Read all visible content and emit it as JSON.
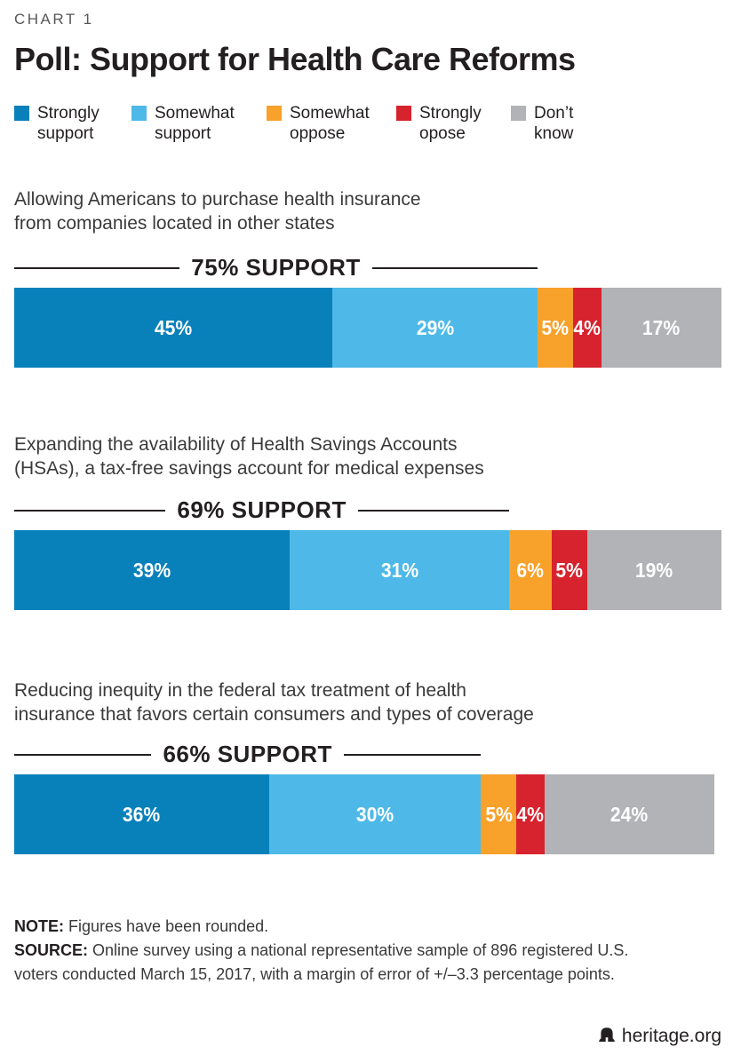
{
  "chart_label": "CHART 1",
  "title": "Poll: Support for Health Care Reforms",
  "legend": [
    {
      "label": "Strongly\nsupport",
      "color": "#0881bb"
    },
    {
      "label": "Somewhat\nsupport",
      "color": "#4eb9e8"
    },
    {
      "label": "Somewhat\noppose",
      "color": "#f8a12b"
    },
    {
      "label": "Strongly\nopose",
      "color": "#d7232e"
    },
    {
      "label": "Don’t\nknow",
      "color": "#b1b3b6"
    }
  ],
  "chart_data": {
    "type": "bar",
    "orientation": "horizontal-stacked",
    "unit": "%",
    "axis_range": [
      0,
      100
    ],
    "grid": false,
    "legend_position": "top",
    "series_labels": [
      "Strongly support",
      "Somewhat support",
      "Somewhat oppose",
      "Strongly opose",
      "Don't know"
    ],
    "series_keys": [
      "strongly-support",
      "somewhat-support",
      "somewhat-oppose",
      "strongly-oppose",
      "dont-know"
    ],
    "sections": [
      {
        "question": "Allowing Americans to purchase health insurance\nfrom companies located in other states",
        "support_label": "75% SUPPORT",
        "support_total": 75,
        "values": [
          45,
          29,
          5,
          4,
          17
        ],
        "value_labels": [
          "45%",
          "29%",
          "5%",
          "4%",
          "17%"
        ]
      },
      {
        "question": "Expanding the availability of Health Savings Accounts\n(HSAs), a tax-free savings account for medical expenses",
        "support_label": "69% SUPPORT",
        "support_total": 69,
        "values": [
          39,
          31,
          6,
          5,
          19
        ],
        "value_labels": [
          "39%",
          "31%",
          "6%",
          "5%",
          "19%"
        ]
      },
      {
        "question": "Reducing inequity in the federal tax treatment of health\ninsurance that favors certain consumers and types of coverage",
        "support_label": "66% SUPPORT",
        "support_total": 66,
        "values": [
          36,
          30,
          5,
          4,
          24
        ],
        "value_labels": [
          "36%",
          "30%",
          "5%",
          "4%",
          "24%"
        ]
      }
    ]
  },
  "note": {
    "label": "NOTE:",
    "text": "Figures have been rounded."
  },
  "source": {
    "label": "SOURCE:",
    "text": "Online survey using a national representative sample of 896 registered U.S.\nvoters conducted March 15, 2017, with a margin of error of +/–3.3 percentage points."
  },
  "footer": {
    "brand": "heritage.org"
  }
}
